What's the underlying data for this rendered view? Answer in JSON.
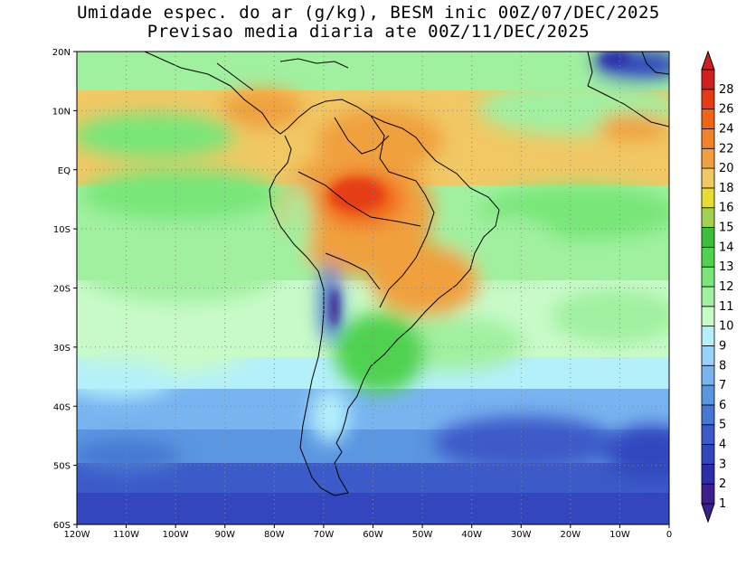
{
  "title_line1": "Umidade espec. do ar (g/kg), BESM inic 00Z/07/DEC/2025",
  "title_line2": "Previsao media diaria ate 00Z/11/DEC/2025",
  "lat_labels": [
    "20N",
    "10N",
    "EQ",
    "10S",
    "20S",
    "30S",
    "40S",
    "50S",
    "60S"
  ],
  "lon_labels": [
    "120W",
    "110W",
    "100W",
    "90W",
    "80W",
    "70W",
    "60W",
    "50W",
    "40W",
    "30W",
    "20W",
    "10W",
    "0"
  ],
  "colorbar": {
    "labels": [
      "1",
      "2",
      "3",
      "4",
      "5",
      "6",
      "7",
      "8",
      "9",
      "10",
      "11",
      "12",
      "13",
      "14",
      "15",
      "16",
      "18",
      "20",
      "22",
      "24",
      "26",
      "28"
    ],
    "colors": [
      "#3c1e8c",
      "#2d2daa",
      "#3346be",
      "#3c5ac8",
      "#4678d2",
      "#5a96e1",
      "#78b4f0",
      "#96d2fa",
      "#b4f0fa",
      "#c8fac8",
      "#a0f0a0",
      "#78e678",
      "#50d250",
      "#3cbe3c",
      "#a0d250",
      "#e6dc32",
      "#f0c864",
      "#f0a03c",
      "#f08228",
      "#f06414",
      "#e63c14",
      "#d21e1e"
    ]
  }
}
